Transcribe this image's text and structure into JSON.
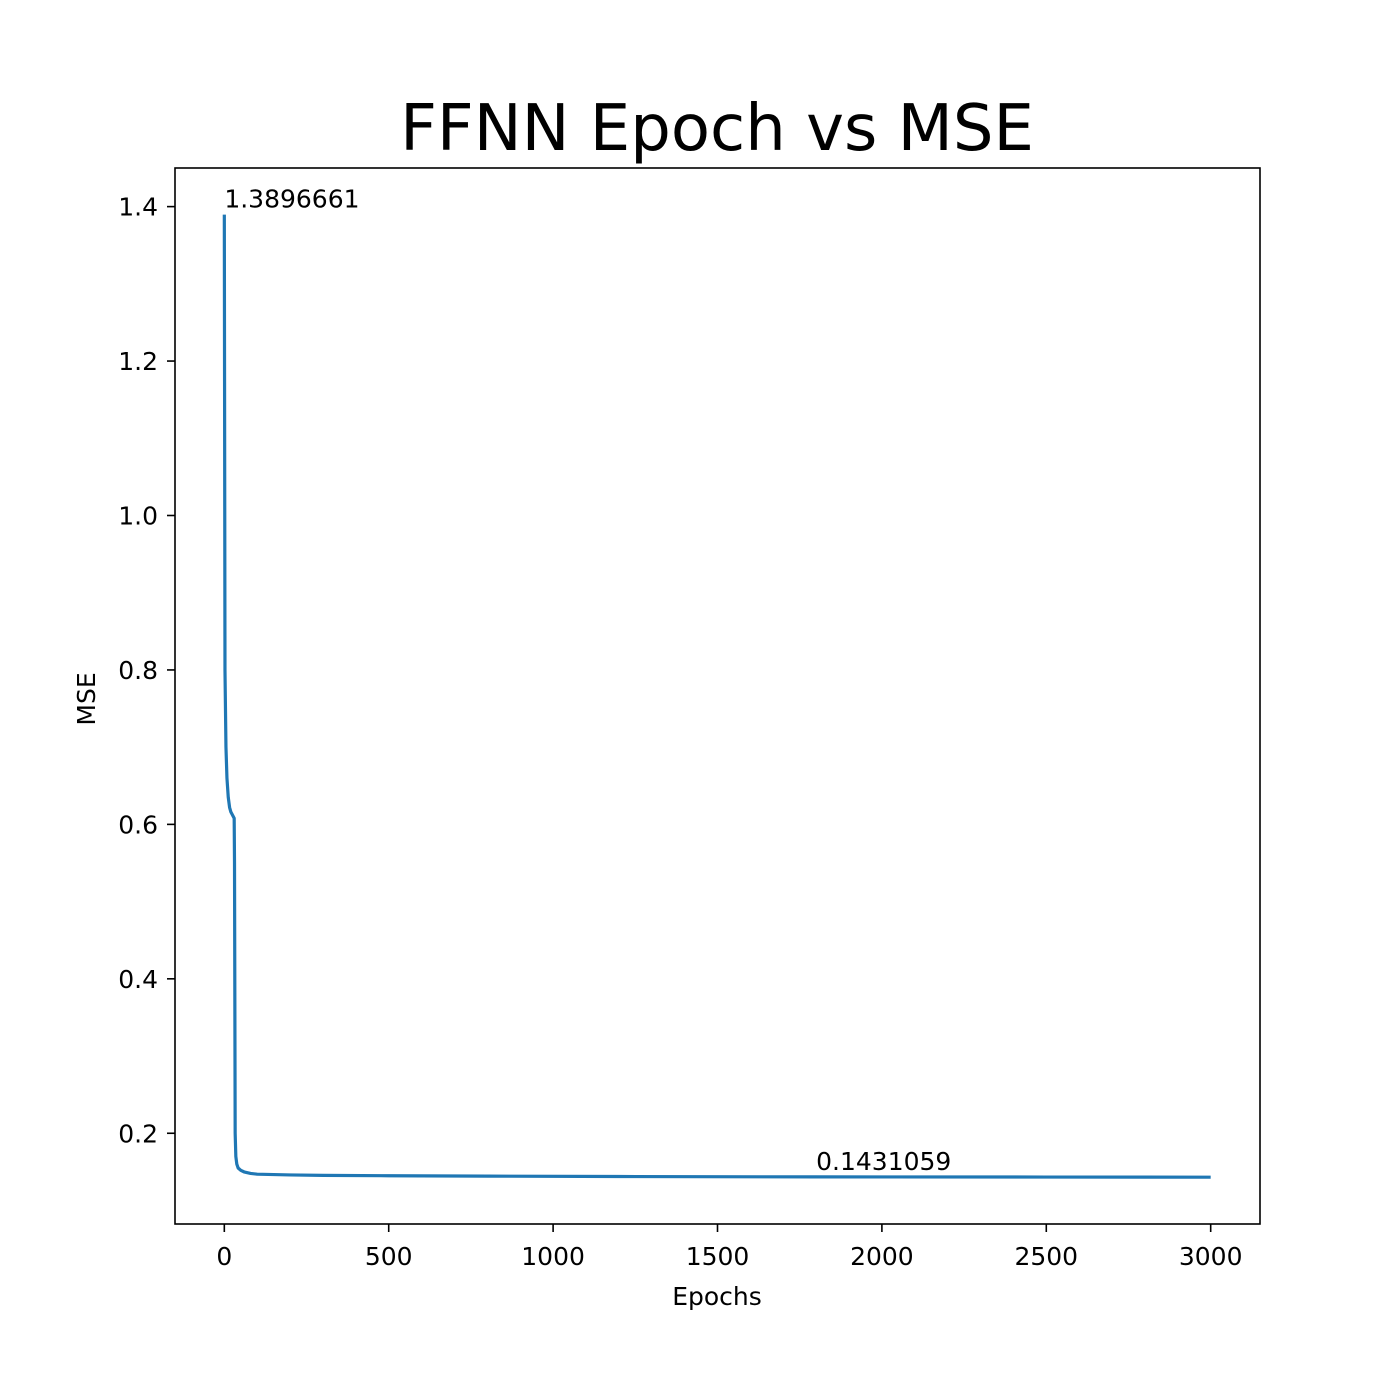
{
  "chart_data": {
    "type": "line",
    "title": "FFNN Epoch vs MSE",
    "xlabel": "Epochs",
    "ylabel": "MSE",
    "xlim": [
      -150,
      3150
    ],
    "ylim": [
      0.0825,
      1.45
    ],
    "xticks": [
      0,
      500,
      1000,
      1500,
      2000,
      2500,
      3000
    ],
    "yticks": [
      0.2,
      0.4,
      0.6,
      0.8,
      1.0,
      1.2,
      1.4
    ],
    "xtick_labels": [
      "0",
      "500",
      "1000",
      "1500",
      "2000",
      "2500",
      "3000"
    ],
    "ytick_labels": [
      "0.2",
      "0.4",
      "0.6",
      "0.8",
      "1.0",
      "1.2",
      "1.4"
    ],
    "grid": false,
    "series": [
      {
        "color": "#1f77b4",
        "x": [
          0,
          2,
          5,
          8,
          12,
          16,
          20,
          25,
          30,
          31,
          33,
          35,
          38,
          42,
          50,
          60,
          80,
          100,
          150,
          200,
          300,
          500,
          800,
          1200,
          1800,
          2500,
          3000
        ],
        "y": [
          1.3896661,
          0.8,
          0.7,
          0.66,
          0.635,
          0.622,
          0.616,
          0.612,
          0.608,
          0.55,
          0.2,
          0.17,
          0.16,
          0.155,
          0.152,
          0.15,
          0.148,
          0.147,
          0.1465,
          0.146,
          0.1455,
          0.145,
          0.1445,
          0.144,
          0.1435,
          0.1433,
          0.1431059
        ]
      }
    ],
    "annotations": [
      {
        "text": "1.3896661",
        "x": 0,
        "y": 1.3896661
      },
      {
        "text": "0.1431059",
        "x": 1800,
        "y": 0.1431059
      }
    ]
  }
}
